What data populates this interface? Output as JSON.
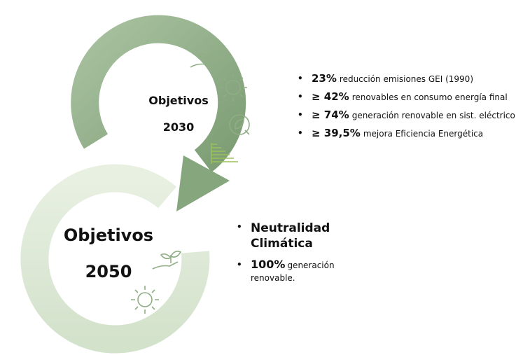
{
  "goals_2030": {
    "title": "Objetivos",
    "year": "2030",
    "items": [
      {
        "highlight": "23%",
        "text": "reducción emisiones GEI (1990)"
      },
      {
        "highlight": "≥ 42%",
        "text": "renovables en consumo energía final"
      },
      {
        "highlight": "≥ 74%",
        "text": "generación renovable en sist. eléctrico"
      },
      {
        "highlight": "≥ 39,5%",
        "text": "mejora Eficiencia Energética"
      }
    ]
  },
  "goals_2050": {
    "title": "Objetivos",
    "year": "2050",
    "items": [
      {
        "highlight": "Neutralidad Climática"
      },
      {
        "highlight": "100%",
        "text": "generación renovable."
      }
    ]
  }
}
